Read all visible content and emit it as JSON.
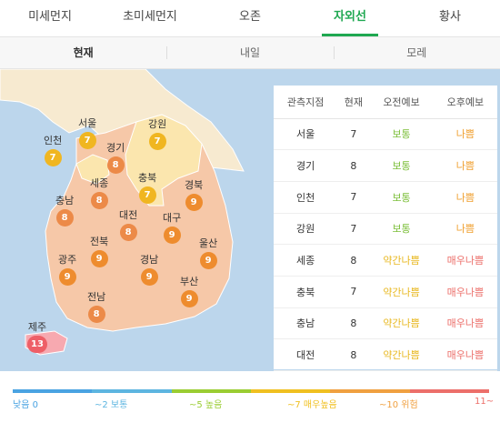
{
  "top_tabs": [
    {
      "label": "미세먼지"
    },
    {
      "label": "초미세먼지"
    },
    {
      "label": "오존"
    },
    {
      "label": "자외선",
      "active": true
    },
    {
      "label": "황사"
    }
  ],
  "sub_tabs": [
    {
      "label": "현재",
      "active": true
    },
    {
      "label": "내일"
    },
    {
      "label": "모레"
    }
  ],
  "regions": [
    {
      "name": "서울",
      "value": "7"
    },
    {
      "name": "인천",
      "value": "7"
    },
    {
      "name": "강원",
      "value": "7"
    },
    {
      "name": "경기",
      "value": "8"
    },
    {
      "name": "세종",
      "value": "8"
    },
    {
      "name": "충북",
      "value": "7"
    },
    {
      "name": "경북",
      "value": "9"
    },
    {
      "name": "충남",
      "value": "8"
    },
    {
      "name": "대전",
      "value": "8"
    },
    {
      "name": "대구",
      "value": "9"
    },
    {
      "name": "울산",
      "value": "9"
    },
    {
      "name": "전북",
      "value": "9"
    },
    {
      "name": "광주",
      "value": "9"
    },
    {
      "name": "경남",
      "value": "9"
    },
    {
      "name": "부산",
      "value": "9"
    },
    {
      "name": "전남",
      "value": "8"
    },
    {
      "name": "제주",
      "value": "13"
    }
  ],
  "table": {
    "headers": [
      "관측지점",
      "현재",
      "오전예보",
      "오후예보"
    ],
    "rows": [
      {
        "site": "서울",
        "now": "7",
        "am": "보통",
        "pm": "나쁨"
      },
      {
        "site": "경기",
        "now": "8",
        "am": "보통",
        "pm": "나쁨"
      },
      {
        "site": "인천",
        "now": "7",
        "am": "보통",
        "pm": "나쁨"
      },
      {
        "site": "강원",
        "now": "7",
        "am": "보통",
        "pm": "나쁨"
      },
      {
        "site": "세종",
        "now": "8",
        "am": "약간나쁨",
        "pm": "매우나쁨"
      },
      {
        "site": "충북",
        "now": "7",
        "am": "약간나쁨",
        "pm": "매우나쁨"
      },
      {
        "site": "충남",
        "now": "8",
        "am": "약간나쁨",
        "pm": "매우나쁨"
      },
      {
        "site": "대전",
        "now": "8",
        "am": "약간나쁨",
        "pm": "매우나쁨"
      }
    ]
  },
  "status_colors": {
    "보통": "#7cbf3a",
    "나쁨": "#f0a030",
    "약간나쁨": "#e8b820",
    "매우나쁨": "#ec6f6a"
  },
  "legend": [
    {
      "label": "낮음 0",
      "color": "#4aa3e2"
    },
    {
      "label": "~2 보통",
      "color": "#5db5e0"
    },
    {
      "label": "~5 높음",
      "color": "#9acd32"
    },
    {
      "label": "~7 매우높음",
      "color": "#f0c020"
    },
    {
      "label": "~10 위험",
      "color": "#f0a040"
    },
    {
      "label": "11~",
      "color": "#ec6f6a"
    }
  ]
}
